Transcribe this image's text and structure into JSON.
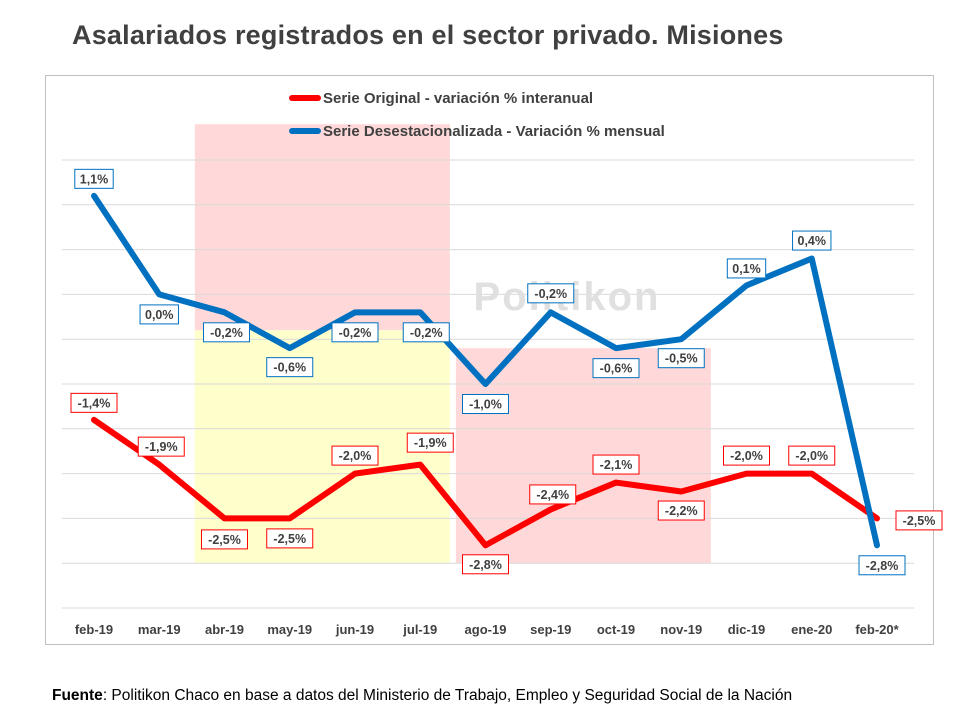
{
  "title": "Asalariados registrados en el sector privado. Misiones",
  "watermark": "Politikon",
  "source": {
    "label": "Fuente",
    "text": ": Politikon Chaco en base a datos del Ministerio de Trabajo, Empleo y Seguridad Social de la Nación"
  },
  "colors": {
    "original": "#ff0000",
    "desestacionalizada": "#0070c0",
    "highlight_pink": "#ffd9d9",
    "highlight_yellow": "#ffffcc",
    "grid": "#d9d9d9"
  },
  "chart_data": {
    "type": "line",
    "title": "Asalariados registrados en el sector privado. Misiones",
    "xlabel": "",
    "ylabel": "",
    "categories": [
      "feb-19",
      "mar-19",
      "abr-19",
      "may-19",
      "jun-19",
      "jul-19",
      "ago-19",
      "sep-19",
      "oct-19",
      "nov-19",
      "dic-19",
      "ene-20",
      "feb-20*"
    ],
    "series": [
      {
        "name": "Serie Original - variación % interanual",
        "color": "#ff0000",
        "values": [
          -1.4,
          -1.9,
          -2.5,
          -2.5,
          -2.0,
          -1.9,
          -2.8,
          -2.4,
          -2.1,
          -2.2,
          -2.0,
          -2.0,
          -2.5
        ],
        "labels": [
          "-1,4%",
          "-1,9%",
          "-2,5%",
          "-2,5%",
          "-2,0%",
          "-1,9%",
          "-2,8%",
          "-2,4%",
          "-2,1%",
          "-2,2%",
          "-2,0%",
          "-2,0%",
          "-2,5%"
        ]
      },
      {
        "name": "Serie Desestacionalizada - Variación % mensual",
        "color": "#0070c0",
        "values": [
          1.1,
          0.0,
          -0.2,
          -0.6,
          -0.2,
          -0.2,
          -1.0,
          -0.2,
          -0.6,
          -0.5,
          0.1,
          0.4,
          -2.8
        ],
        "labels": [
          "1,1%",
          "0,0%",
          "-0,2%",
          "-0,6%",
          "-0,2%",
          "-0,2%",
          "-1,0%",
          "-0,2%",
          "-0,6%",
          "-0,5%",
          "0,1%",
          "0,4%",
          "-2,8%"
        ]
      }
    ],
    "ylim": [
      -3.5,
      1.5
    ],
    "ystep": 0.5,
    "grid": true,
    "y_tick_labels_visible": false,
    "legend": "top-center",
    "highlight_regions": [
      {
        "from": "abr-19",
        "to": "jul-19",
        "y_from": -0.4,
        "y_to": 1.9,
        "color": "pink"
      },
      {
        "from": "abr-19",
        "to": "jul-19",
        "y_from": -3.0,
        "y_to": -0.4,
        "color": "yellow"
      },
      {
        "from": "ago-19",
        "to": "nov-19",
        "y_from": -3.0,
        "y_to": -0.6,
        "color": "pink"
      }
    ]
  }
}
